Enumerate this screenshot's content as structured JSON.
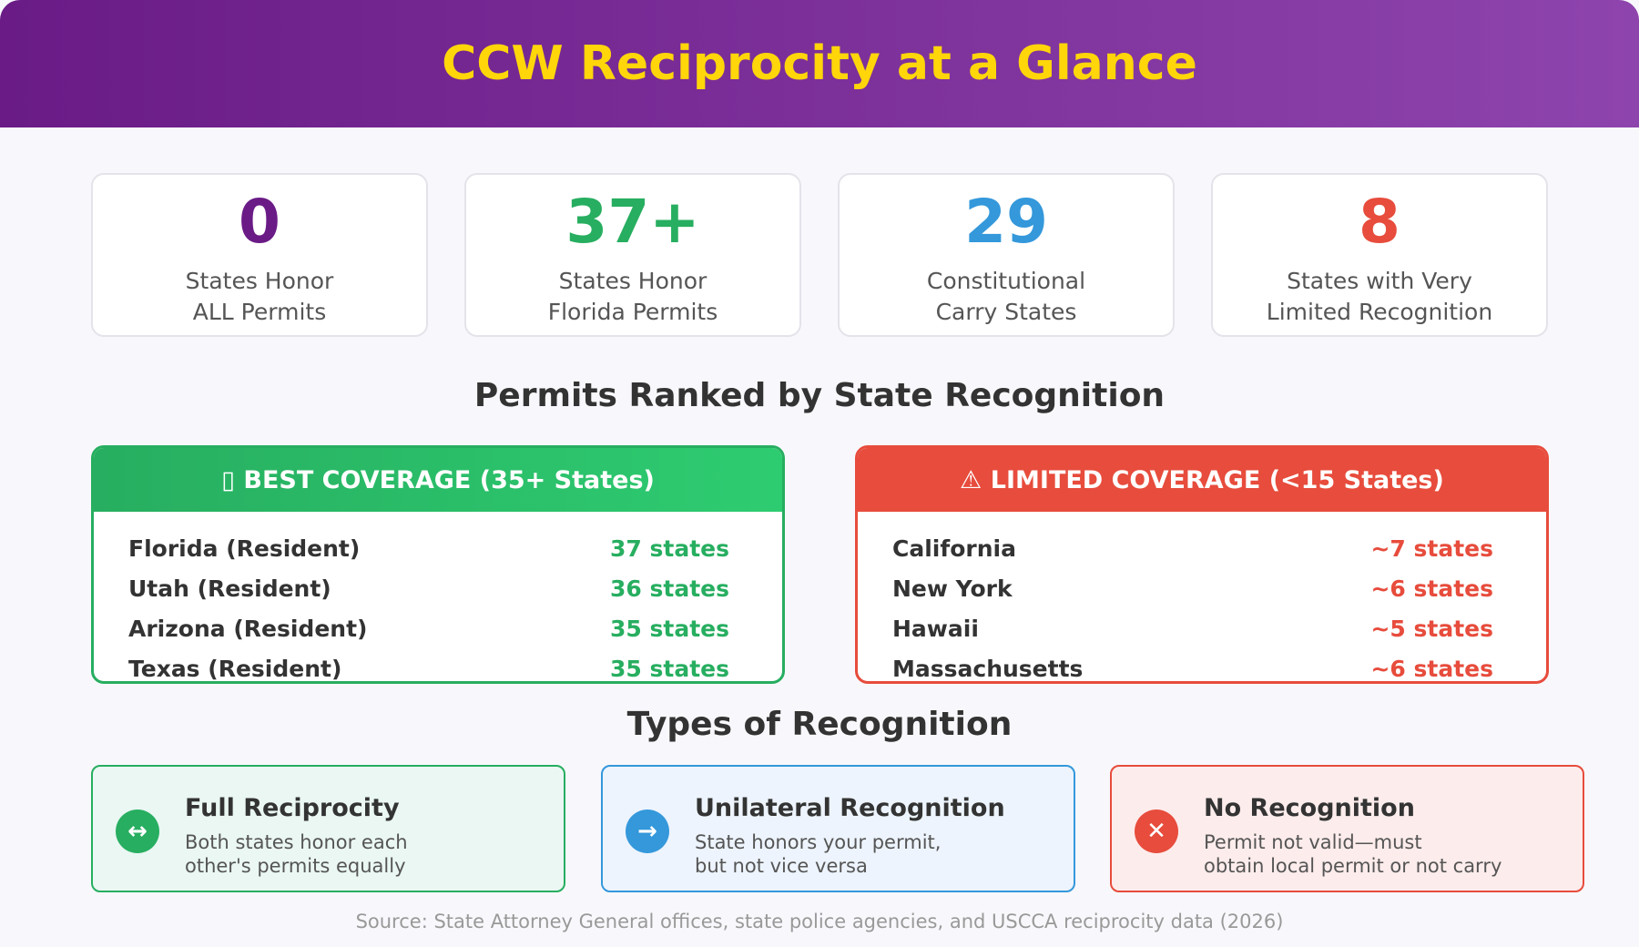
{
  "title": "CCW Reciprocity at a Glance",
  "colors": {
    "purple": "#6a1b86",
    "green": "#27ae60",
    "blue": "#3498db",
    "red": "#e74c3c",
    "gold": "#ffd60a"
  },
  "stats": [
    {
      "value": "0",
      "label": "States Honor\nALL Permits",
      "color": "#6a1b86"
    },
    {
      "value": "37+",
      "label": "States Honor\nFlorida Permits",
      "color": "#27ae60"
    },
    {
      "value": "29",
      "label": "Constitutional\nCarry States",
      "color": "#3498db"
    },
    {
      "value": "8",
      "label": "States with Very\nLimited Recognition",
      "color": "#e74c3c"
    }
  ],
  "ranked_title": "Permits Ranked by State Recognition",
  "best": {
    "header": "▯ BEST COVERAGE (35+ States)",
    "rows": [
      {
        "name": "Florida (Resident)",
        "value": "37 states"
      },
      {
        "name": "Utah (Resident)",
        "value": "36 states"
      },
      {
        "name": "Arizona (Resident)",
        "value": "35 states"
      },
      {
        "name": "Texas (Resident)",
        "value": "35 states"
      }
    ]
  },
  "limited": {
    "header": "⚠ LIMITED COVERAGE (<15 States)",
    "rows": [
      {
        "name": "California",
        "value": "~7 states"
      },
      {
        "name": "New York",
        "value": "~6 states"
      },
      {
        "name": "Hawaii",
        "value": "~5 states"
      },
      {
        "name": "Massachusetts",
        "value": "~6 states"
      }
    ]
  },
  "types_title": "Types of Recognition",
  "types": [
    {
      "icon": "↔",
      "icon_name": "double-arrow-icon",
      "title": "Full Reciprocity",
      "desc": "Both states honor each\nother's permits equally"
    },
    {
      "icon": "→",
      "icon_name": "arrow-right-icon",
      "title": "Unilateral Recognition",
      "desc": "State honors your permit,\nbut not vice versa"
    },
    {
      "icon": "✕",
      "icon_name": "x-icon",
      "title": "No Recognition",
      "desc": "Permit not valid—must\nobtain local permit or not carry"
    }
  ],
  "source": "Source: State Attorney General offices, state police agencies, and USCCA reciprocity data (2026)"
}
